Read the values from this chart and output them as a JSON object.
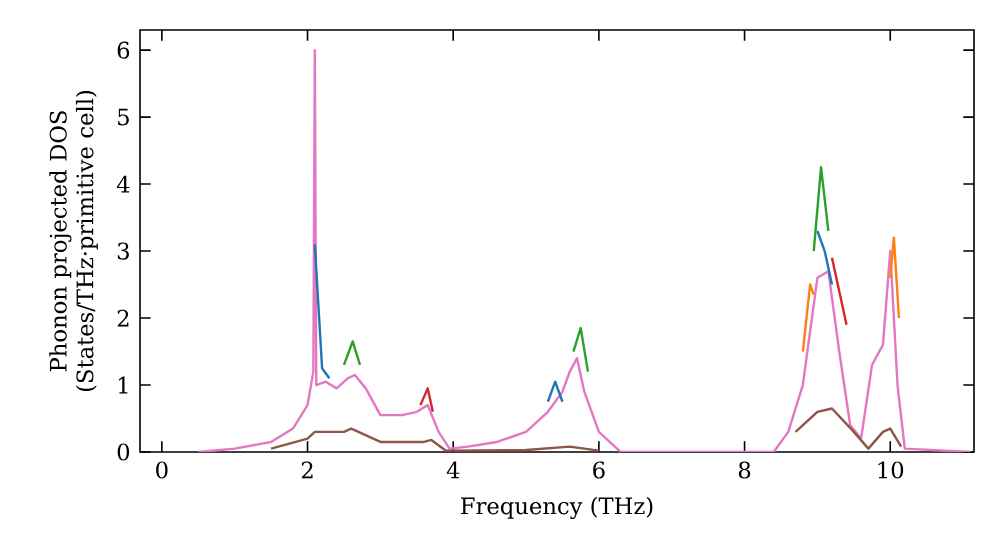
{
  "chart_data": {
    "type": "line",
    "xlabel": "Frequency (THz)",
    "ylabel": "Phonon projected DOS (States/THz·primitive cell)",
    "xlim": [
      -0.3,
      11.15
    ],
    "ylim": [
      0,
      6.3
    ],
    "xticks": [
      0,
      2,
      4,
      6,
      8,
      10
    ],
    "yticks": [
      0,
      1,
      2,
      3,
      4,
      5,
      6
    ],
    "grid": false,
    "marker": "none",
    "line_style": "solid",
    "series": [
      {
        "color": "#1f77b4",
        "x": [
          2.1,
          2.2,
          2.3,
          2.35,
          5.3,
          5.4,
          5.5,
          5.55,
          9.0,
          9.1,
          9.2
        ],
        "values": [
          3.1,
          1.25,
          1.1,
          null,
          0.75,
          1.05,
          0.75,
          null,
          3.3,
          3.0,
          2.5
        ]
      },
      {
        "color": "#ff7f0e",
        "x": [
          8.8,
          8.9,
          8.95,
          8.97,
          10.0,
          10.05,
          10.12
        ],
        "values": [
          1.5,
          2.5,
          2.35,
          null,
          2.6,
          3.2,
          2.0
        ]
      },
      {
        "color": "#2ca02c",
        "x": [
          2.5,
          2.62,
          2.72,
          2.75,
          5.65,
          5.75,
          5.85,
          5.9,
          8.95,
          9.05,
          9.15
        ],
        "values": [
          1.3,
          1.65,
          1.3,
          null,
          1.5,
          1.85,
          1.2,
          null,
          3.0,
          4.25,
          3.3
        ]
      },
      {
        "color": "#d62728",
        "x": [
          3.55,
          3.65,
          3.72,
          3.75,
          9.2,
          9.3,
          9.4
        ],
        "values": [
          0.7,
          0.95,
          0.6,
          null,
          2.9,
          2.4,
          1.9
        ]
      },
      {
        "color": "#8c564b",
        "x": [
          1.5,
          2.0,
          2.1,
          2.5,
          2.6,
          3.0,
          3.6,
          3.7,
          3.9,
          5.0,
          5.6,
          6.0,
          6.1,
          8.7,
          9.0,
          9.2,
          9.5,
          9.7,
          9.9,
          10.0,
          10.15
        ],
        "values": [
          0.05,
          0.2,
          0.3,
          0.3,
          0.35,
          0.15,
          0.15,
          0.18,
          0.02,
          0.03,
          0.08,
          0.02,
          null,
          0.3,
          0.6,
          0.65,
          0.3,
          0.05,
          0.3,
          0.35,
          0.08
        ]
      },
      {
        "color": "#e377c2",
        "x": [
          0.5,
          1.0,
          1.5,
          1.8,
          2.0,
          2.08,
          2.1,
          2.12,
          2.25,
          2.4,
          2.55,
          2.65,
          2.8,
          3.0,
          3.3,
          3.5,
          3.65,
          3.8,
          3.95,
          4.2,
          4.6,
          5.0,
          5.3,
          5.5,
          5.6,
          5.7,
          5.8,
          6.0,
          6.2,
          6.3,
          8.4,
          8.6,
          8.8,
          8.9,
          9.0,
          9.15,
          9.3,
          9.45,
          9.6,
          9.75,
          9.9,
          10.0,
          10.1,
          10.2,
          11.1
        ],
        "values": [
          0,
          0.05,
          0.15,
          0.35,
          0.7,
          1.2,
          6.0,
          1.0,
          1.05,
          0.95,
          1.1,
          1.15,
          0.95,
          0.55,
          0.55,
          0.6,
          0.7,
          0.3,
          0.05,
          0.08,
          0.15,
          0.3,
          0.6,
          0.9,
          1.2,
          1.4,
          0.9,
          0.3,
          0.1,
          0,
          0,
          0.3,
          1.0,
          1.8,
          2.6,
          2.7,
          1.5,
          0.4,
          0.2,
          1.3,
          1.6,
          3.0,
          1.0,
          0.05,
          0
        ]
      }
    ]
  }
}
